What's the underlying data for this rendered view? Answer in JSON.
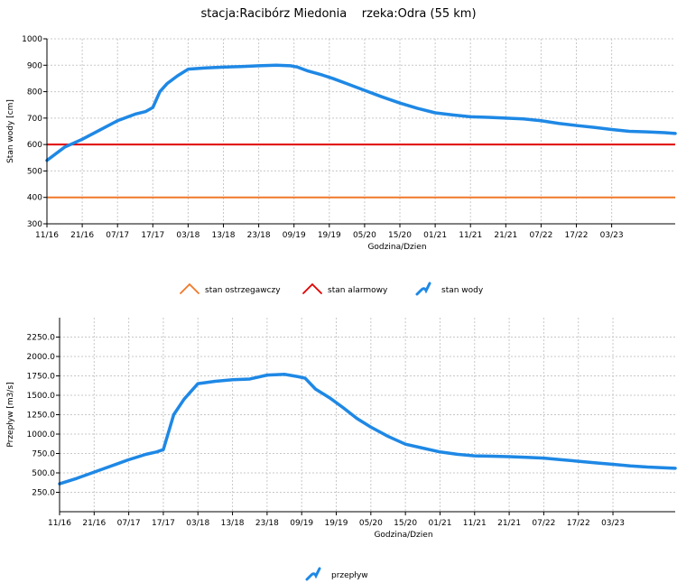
{
  "page_title": "stacja:Racibórz Miedonia    rzeka:Odra (55 km)",
  "colors": {
    "warning": "#f07828",
    "alarm": "#e00000",
    "series": "#1e88e5",
    "grid": "#c8c8c8",
    "axis": "#000000"
  },
  "chart_data": [
    {
      "type": "line",
      "ylabel": "Stan wody [cm]",
      "xlabel": "Godzina/Dzien",
      "ylim": [
        300,
        1000
      ],
      "yticks": [
        "1000",
        "900",
        "800",
        "700",
        "600",
        "500",
        "400",
        "300"
      ],
      "ytick_values": [
        1000,
        900,
        800,
        700,
        600,
        500,
        400,
        300
      ],
      "xticks": [
        "11/16",
        "21/16",
        "07/17",
        "17/17",
        "03/18",
        "13/18",
        "23/18",
        "09/19",
        "19/19",
        "05/20",
        "15/20",
        "01/21",
        "11/21",
        "21/21",
        "07/22",
        "17/22",
        "03/23"
      ],
      "xlim": [
        0,
        17.8
      ],
      "threshold_lines": [
        {
          "name": "stan ostrzegawczy",
          "value": 400
        },
        {
          "name": "stan alarmowy",
          "value": 600
        }
      ],
      "series": [
        {
          "name": "stan wody",
          "x": [
            0,
            0.5,
            1,
            1.5,
            2,
            2.5,
            2.8,
            3,
            3.2,
            3.4,
            3.7,
            4,
            4.5,
            5,
            5.5,
            6,
            6.5,
            6.9,
            7.1,
            7.4,
            7.8,
            8.1,
            8.5,
            9,
            9.5,
            10,
            10.5,
            11,
            11.5,
            12,
            12.5,
            13,
            13.5,
            14,
            14.5,
            15,
            15.5,
            16,
            16.5,
            17,
            17.5,
            17.8
          ],
          "y": [
            540,
            590,
            620,
            655,
            690,
            715,
            725,
            740,
            800,
            830,
            860,
            885,
            890,
            893,
            895,
            898,
            900,
            898,
            893,
            878,
            863,
            850,
            830,
            805,
            780,
            757,
            737,
            720,
            712,
            705,
            703,
            700,
            697,
            690,
            680,
            672,
            665,
            657,
            650,
            648,
            645,
            642
          ]
        }
      ],
      "legend": [
        "stan ostrzegawczy",
        "stan alarmowy",
        "stan wody"
      ]
    },
    {
      "type": "line",
      "ylabel": "Przepływ [m3/s]",
      "xlabel": "Godzina/Dzien",
      "ylim": [
        0,
        2500
      ],
      "yticks": [
        "2250.0",
        "2000.0",
        "1750.0",
        "1500.0",
        "1250.0",
        "1000.0",
        "750.0",
        "500.0",
        "250.0"
      ],
      "ytick_values": [
        2250,
        2000,
        1750,
        1500,
        1250,
        1000,
        750,
        500,
        250
      ],
      "xticks": [
        "11/16",
        "21/16",
        "07/17",
        "17/17",
        "03/18",
        "13/18",
        "23/18",
        "09/19",
        "19/19",
        "05/20",
        "15/20",
        "01/21",
        "11/21",
        "21/21",
        "07/22",
        "17/22",
        "03/23"
      ],
      "xlim": [
        0,
        17.8
      ],
      "series": [
        {
          "name": "przepływ",
          "x": [
            0,
            0.5,
            1,
            1.5,
            2,
            2.5,
            2.8,
            3,
            3.3,
            3.6,
            4,
            4.5,
            5,
            5.5,
            6,
            6.5,
            6.9,
            7.1,
            7.4,
            7.8,
            8.2,
            8.6,
            9,
            9.5,
            10,
            10.5,
            11,
            11.5,
            12,
            12.5,
            13,
            13.5,
            14,
            14.5,
            15,
            15.5,
            16,
            16.5,
            17,
            17.5,
            17.8
          ],
          "y": [
            360,
            430,
            510,
            590,
            670,
            740,
            770,
            800,
            1250,
            1450,
            1650,
            1680,
            1700,
            1710,
            1760,
            1770,
            1740,
            1720,
            1580,
            1470,
            1340,
            1200,
            1090,
            970,
            870,
            820,
            770,
            740,
            720,
            715,
            710,
            700,
            690,
            670,
            650,
            630,
            610,
            590,
            575,
            565,
            560
          ]
        }
      ],
      "legend": [
        "przepływ"
      ]
    }
  ]
}
